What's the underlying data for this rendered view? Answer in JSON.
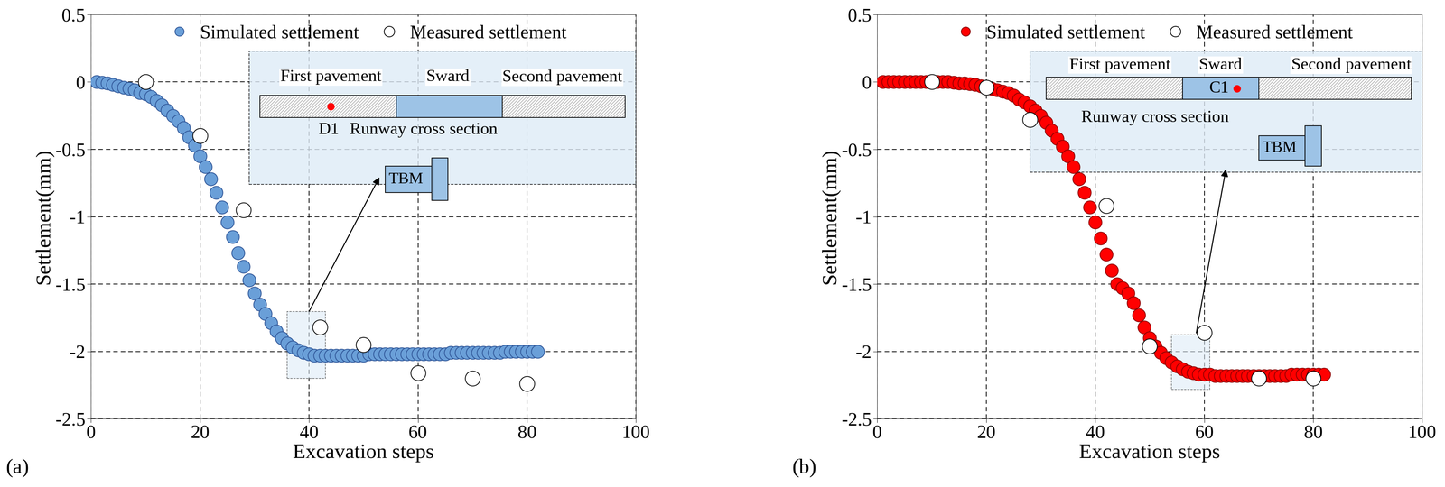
{
  "chart_data": [
    {
      "type": "scatter",
      "x_label": "Excavation steps",
      "y_label": "Settlement(mm)",
      "xlim": [
        0,
        100
      ],
      "xticks": [
        0,
        20,
        40,
        60,
        80,
        100
      ],
      "ylim": [
        -2.5,
        0.5
      ],
      "yticks": [
        -2.5,
        -2,
        -1.5,
        -1,
        -0.5,
        0,
        0.5
      ],
      "grid": true,
      "legend": "upper center",
      "series": [
        {
          "name": "Simulated settlement",
          "color": "#6a9fd8",
          "marker": "o",
          "line_style": "none",
          "x": [
            1,
            2,
            3,
            4,
            5,
            6,
            7,
            8,
            9,
            10,
            11,
            12,
            13,
            14,
            15,
            16,
            17,
            18,
            19,
            20,
            21,
            22,
            23,
            24,
            25,
            26,
            27,
            28,
            29,
            30,
            31,
            32,
            33,
            34,
            35,
            36,
            37,
            38,
            39,
            40,
            41,
            42,
            43,
            44,
            45,
            46,
            47,
            48,
            49,
            50,
            51,
            52,
            53,
            54,
            55,
            56,
            57,
            58,
            59,
            60,
            61,
            62,
            63,
            64,
            65,
            66,
            67,
            68,
            69,
            70,
            71,
            72,
            73,
            74,
            75,
            76,
            77,
            78,
            79,
            80,
            81,
            82
          ],
          "values": [
            0,
            -0.005,
            -0.01,
            -0.02,
            -0.03,
            -0.04,
            -0.05,
            -0.06,
            -0.08,
            -0.09,
            -0.11,
            -0.14,
            -0.17,
            -0.21,
            -0.25,
            -0.29,
            -0.34,
            -0.41,
            -0.47,
            -0.55,
            -0.63,
            -0.72,
            -0.82,
            -0.93,
            -1.04,
            -1.15,
            -1.27,
            -1.37,
            -1.47,
            -1.57,
            -1.65,
            -1.72,
            -1.79,
            -1.85,
            -1.9,
            -1.94,
            -1.97,
            -1.99,
            -2.01,
            -2.02,
            -2.03,
            -2.03,
            -2.03,
            -2.03,
            -2.03,
            -2.03,
            -2.03,
            -2.03,
            -2.03,
            -2.03,
            -2.02,
            -2.02,
            -2.02,
            -2.02,
            -2.02,
            -2.02,
            -2.02,
            -2.02,
            -2.02,
            -2.02,
            -2.02,
            -2.02,
            -2.02,
            -2.02,
            -2.02,
            -2.01,
            -2.01,
            -2.01,
            -2.01,
            -2.01,
            -2.01,
            -2.01,
            -2.01,
            -2.01,
            -2.01,
            -2.0,
            -2.0,
            -2.0,
            -2.0,
            -2.0,
            -2.0,
            -2.0
          ]
        },
        {
          "name": "Measured settlement",
          "color": "#ffffff",
          "marker": "o",
          "line_style": "none",
          "x": [
            10,
            20,
            28,
            42,
            50,
            60,
            70,
            80
          ],
          "values": [
            0,
            -0.4,
            -0.95,
            -1.82,
            -1.95,
            -2.16,
            -2.2,
            -2.24
          ]
        }
      ],
      "annotations": {
        "panel_label": "(a)",
        "pavement_labels": [
          "First pavement",
          "Sward",
          "Second pavement"
        ],
        "point_label": "D1",
        "section_label": "Runway cross section",
        "machine_label": "TBM"
      }
    },
    {
      "type": "scatter",
      "x_label": "Excavation steps",
      "y_label": "Settlement(mm)",
      "xlim": [
        0,
        100
      ],
      "xticks": [
        0,
        20,
        40,
        60,
        80,
        100
      ],
      "ylim": [
        -2.5,
        0.5
      ],
      "yticks": [
        -2.5,
        -2,
        -1.5,
        -1,
        -0.5,
        0,
        0.5
      ],
      "grid": true,
      "legend": "upper center",
      "series": [
        {
          "name": "Simulated settlement",
          "color": "#ff0000",
          "marker": "o",
          "line_style": "none",
          "x": [
            1,
            2,
            3,
            4,
            5,
            6,
            7,
            8,
            9,
            10,
            11,
            12,
            13,
            14,
            15,
            16,
            17,
            18,
            19,
            20,
            21,
            22,
            23,
            24,
            25,
            26,
            27,
            28,
            29,
            30,
            31,
            32,
            33,
            34,
            35,
            36,
            37,
            38,
            39,
            40,
            41,
            42,
            43,
            44,
            45,
            46,
            47,
            48,
            49,
            50,
            51,
            52,
            53,
            54,
            55,
            56,
            57,
            58,
            59,
            60,
            61,
            62,
            63,
            64,
            65,
            66,
            67,
            68,
            69,
            70,
            71,
            72,
            73,
            74,
            75,
            76,
            77,
            78,
            79,
            80,
            81,
            82
          ],
          "values": [
            0,
            0,
            0,
            0,
            0,
            0,
            0,
            0,
            0,
            0,
            0,
            0,
            0,
            -0.005,
            -0.01,
            -0.01,
            -0.015,
            -0.02,
            -0.03,
            -0.04,
            -0.05,
            -0.06,
            -0.07,
            -0.08,
            -0.1,
            -0.13,
            -0.15,
            -0.18,
            -0.21,
            -0.25,
            -0.3,
            -0.36,
            -0.42,
            -0.48,
            -0.55,
            -0.63,
            -0.72,
            -0.82,
            -0.93,
            -1.04,
            -1.16,
            -1.28,
            -1.4,
            -1.5,
            -1.53,
            -1.57,
            -1.64,
            -1.73,
            -1.82,
            -1.9,
            -1.96,
            -2.01,
            -2.05,
            -2.08,
            -2.11,
            -2.13,
            -2.15,
            -2.16,
            -2.17,
            -2.17,
            -2.17,
            -2.18,
            -2.18,
            -2.18,
            -2.18,
            -2.18,
            -2.18,
            -2.18,
            -2.18,
            -2.18,
            -2.18,
            -2.18,
            -2.18,
            -2.18,
            -2.18,
            -2.17,
            -2.17,
            -2.17,
            -2.17,
            -2.17,
            -2.17,
            -2.17
          ]
        },
        {
          "name": "Measured settlement",
          "color": "#ffffff",
          "marker": "o",
          "line_style": "none",
          "x": [
            10,
            20,
            28,
            42,
            50,
            60,
            70,
            80
          ],
          "values": [
            0,
            -0.04,
            -0.28,
            -0.92,
            -1.96,
            -1.86,
            -2.2,
            -2.2
          ]
        }
      ],
      "annotations": {
        "panel_label": "(b)",
        "pavement_labels": [
          "First pavement",
          "Sward",
          "Second pavement"
        ],
        "point_label": "C1",
        "section_label": "Runway cross section",
        "machine_label": "TBM"
      }
    }
  ]
}
